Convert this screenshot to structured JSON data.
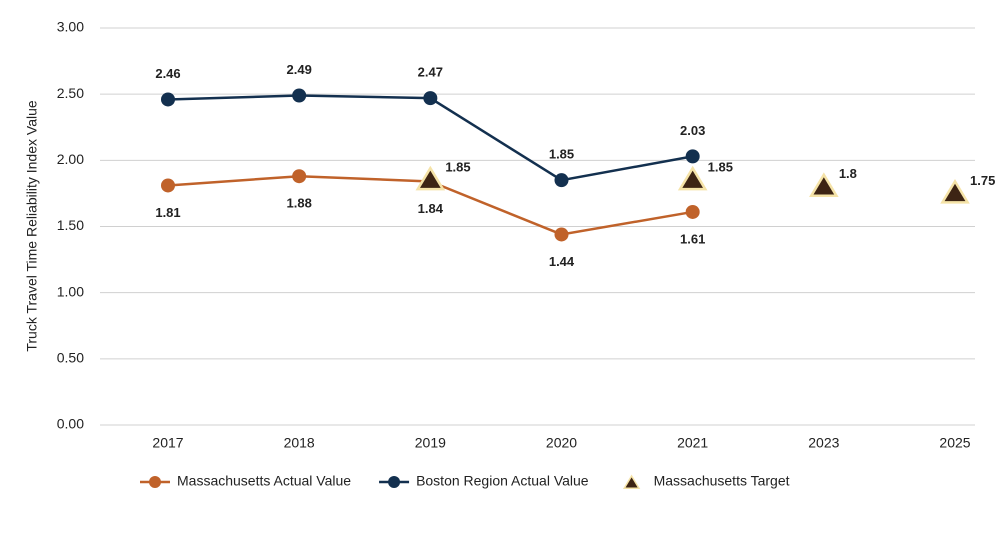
{
  "chart_data": {
    "type": "line",
    "y_label": "Truck Travel Time Reliability Index Value",
    "categories": [
      "2017",
      "2018",
      "2019",
      "2020",
      "2021",
      "2023",
      "2025"
    ],
    "series": [
      {
        "name": "Massachusetts Actual Value",
        "color": "#c0622a",
        "marker": "circle",
        "line": true,
        "label_side": "below",
        "values": [
          1.81,
          1.88,
          1.84,
          1.44,
          1.61,
          null,
          null
        ]
      },
      {
        "name": "Boston Region Actual Value",
        "color": "#13304f",
        "marker": "circle",
        "line": true,
        "label_side": "above",
        "values": [
          2.46,
          2.49,
          2.47,
          1.85,
          2.03,
          null,
          null
        ]
      },
      {
        "name": "Massachusetts Target",
        "color": "#3d2414",
        "marker": "triangle",
        "line": false,
        "label_side": "right",
        "values": [
          null,
          null,
          1.85,
          null,
          1.85,
          1.8,
          1.75
        ]
      }
    ],
    "ylim": [
      0,
      3
    ],
    "yticks": [
      {
        "value": 0,
        "label": "0.00"
      },
      {
        "value": 0.5,
        "label": "0.50"
      },
      {
        "value": 1,
        "label": "1.00"
      },
      {
        "value": 1.5,
        "label": "1.50"
      },
      {
        "value": 2,
        "label": "2.00"
      },
      {
        "value": 2.5,
        "label": "2.50"
      },
      {
        "value": 3,
        "label": "3.00"
      }
    ],
    "grid": true
  }
}
